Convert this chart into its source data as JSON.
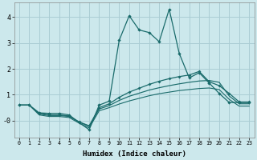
{
  "xlabel": "Humidex (Indice chaleur)",
  "bg_color": "#cce8ec",
  "grid_color": "#aacdd4",
  "line_color": "#1a6b6b",
  "x_values": [
    0,
    1,
    2,
    3,
    4,
    5,
    6,
    7,
    8,
    9,
    10,
    11,
    12,
    13,
    14,
    15,
    16,
    17,
    18,
    19,
    20,
    21,
    22,
    23
  ],
  "ylim": [
    -0.65,
    4.55
  ],
  "xlim": [
    -0.5,
    23.5
  ],
  "series1": [
    0.6,
    0.6,
    0.3,
    0.28,
    0.28,
    0.22,
    -0.08,
    -0.35,
    0.6,
    0.75,
    3.1,
    4.05,
    3.5,
    3.4,
    3.05,
    4.3,
    2.6,
    1.65,
    1.85,
    1.45,
    1.05,
    0.7,
    0.7,
    0.7
  ],
  "series2": [
    0.6,
    0.6,
    0.28,
    0.22,
    0.22,
    0.18,
    -0.05,
    -0.2,
    0.5,
    0.65,
    0.9,
    1.1,
    1.25,
    1.4,
    1.52,
    1.62,
    1.7,
    1.76,
    1.9,
    1.5,
    1.35,
    1.05,
    0.72,
    0.72
  ],
  "series3": [
    0.6,
    0.6,
    0.26,
    0.2,
    0.2,
    0.16,
    -0.06,
    -0.22,
    0.45,
    0.58,
    0.78,
    0.94,
    1.06,
    1.18,
    1.27,
    1.35,
    1.42,
    1.48,
    1.53,
    1.55,
    1.48,
    0.95,
    0.65,
    0.65
  ],
  "series4": [
    0.6,
    0.6,
    0.22,
    0.16,
    0.16,
    0.12,
    -0.1,
    -0.28,
    0.38,
    0.5,
    0.64,
    0.76,
    0.86,
    0.96,
    1.04,
    1.1,
    1.16,
    1.2,
    1.24,
    1.26,
    1.2,
    0.82,
    0.56,
    0.56
  ]
}
